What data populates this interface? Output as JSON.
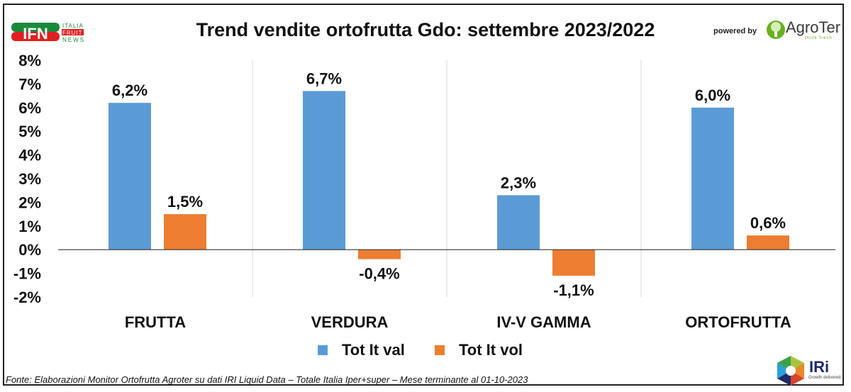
{
  "header": {
    "title": "Trend vendite ortofrutta Gdo: settembre 2023/2022",
    "logo_left": "IFN ITALIA FRUIT NEWS",
    "powered_by": "powered by",
    "logo_right": "AgroTer",
    "logo_right_tagline": "think fresh"
  },
  "footer": {
    "source": "Fonte: Elaborazioni Monitor Ortofrutta Agroter su dati IRI Liquid Data – Totale Italia Iper+super – Mese terminante al 01-10-2023",
    "logo": "IRi",
    "logo_tagline": "Growth delivered."
  },
  "colors": {
    "val": "#5b9bd5",
    "vol": "#ed7d31"
  },
  "chart_data": {
    "type": "bar",
    "title": "Trend vendite ortofrutta Gdo: settembre 2023/2022",
    "categories": [
      "FRUTTA",
      "VERDURA",
      "IV-V GAMMA",
      "ORTOFRUTTA"
    ],
    "series": [
      {
        "name": "Tot It val",
        "values": [
          6.2,
          6.7,
          2.3,
          6.0
        ],
        "labels": [
          "6,2%",
          "6,7%",
          "2,3%",
          "6,0%"
        ]
      },
      {
        "name": "Tot It vol",
        "values": [
          1.5,
          -0.4,
          -1.1,
          0.6
        ],
        "labels": [
          "1,5%",
          "-0,4%",
          "-1,1%",
          "0,6%"
        ]
      }
    ],
    "ylim": [
      -2,
      8
    ],
    "yticks": [
      "-2%",
      "-1%",
      "0%",
      "1%",
      "2%",
      "3%",
      "4%",
      "5%",
      "6%",
      "7%",
      "8%"
    ],
    "legend": "bottom",
    "xlabel": "",
    "ylabel": ""
  }
}
